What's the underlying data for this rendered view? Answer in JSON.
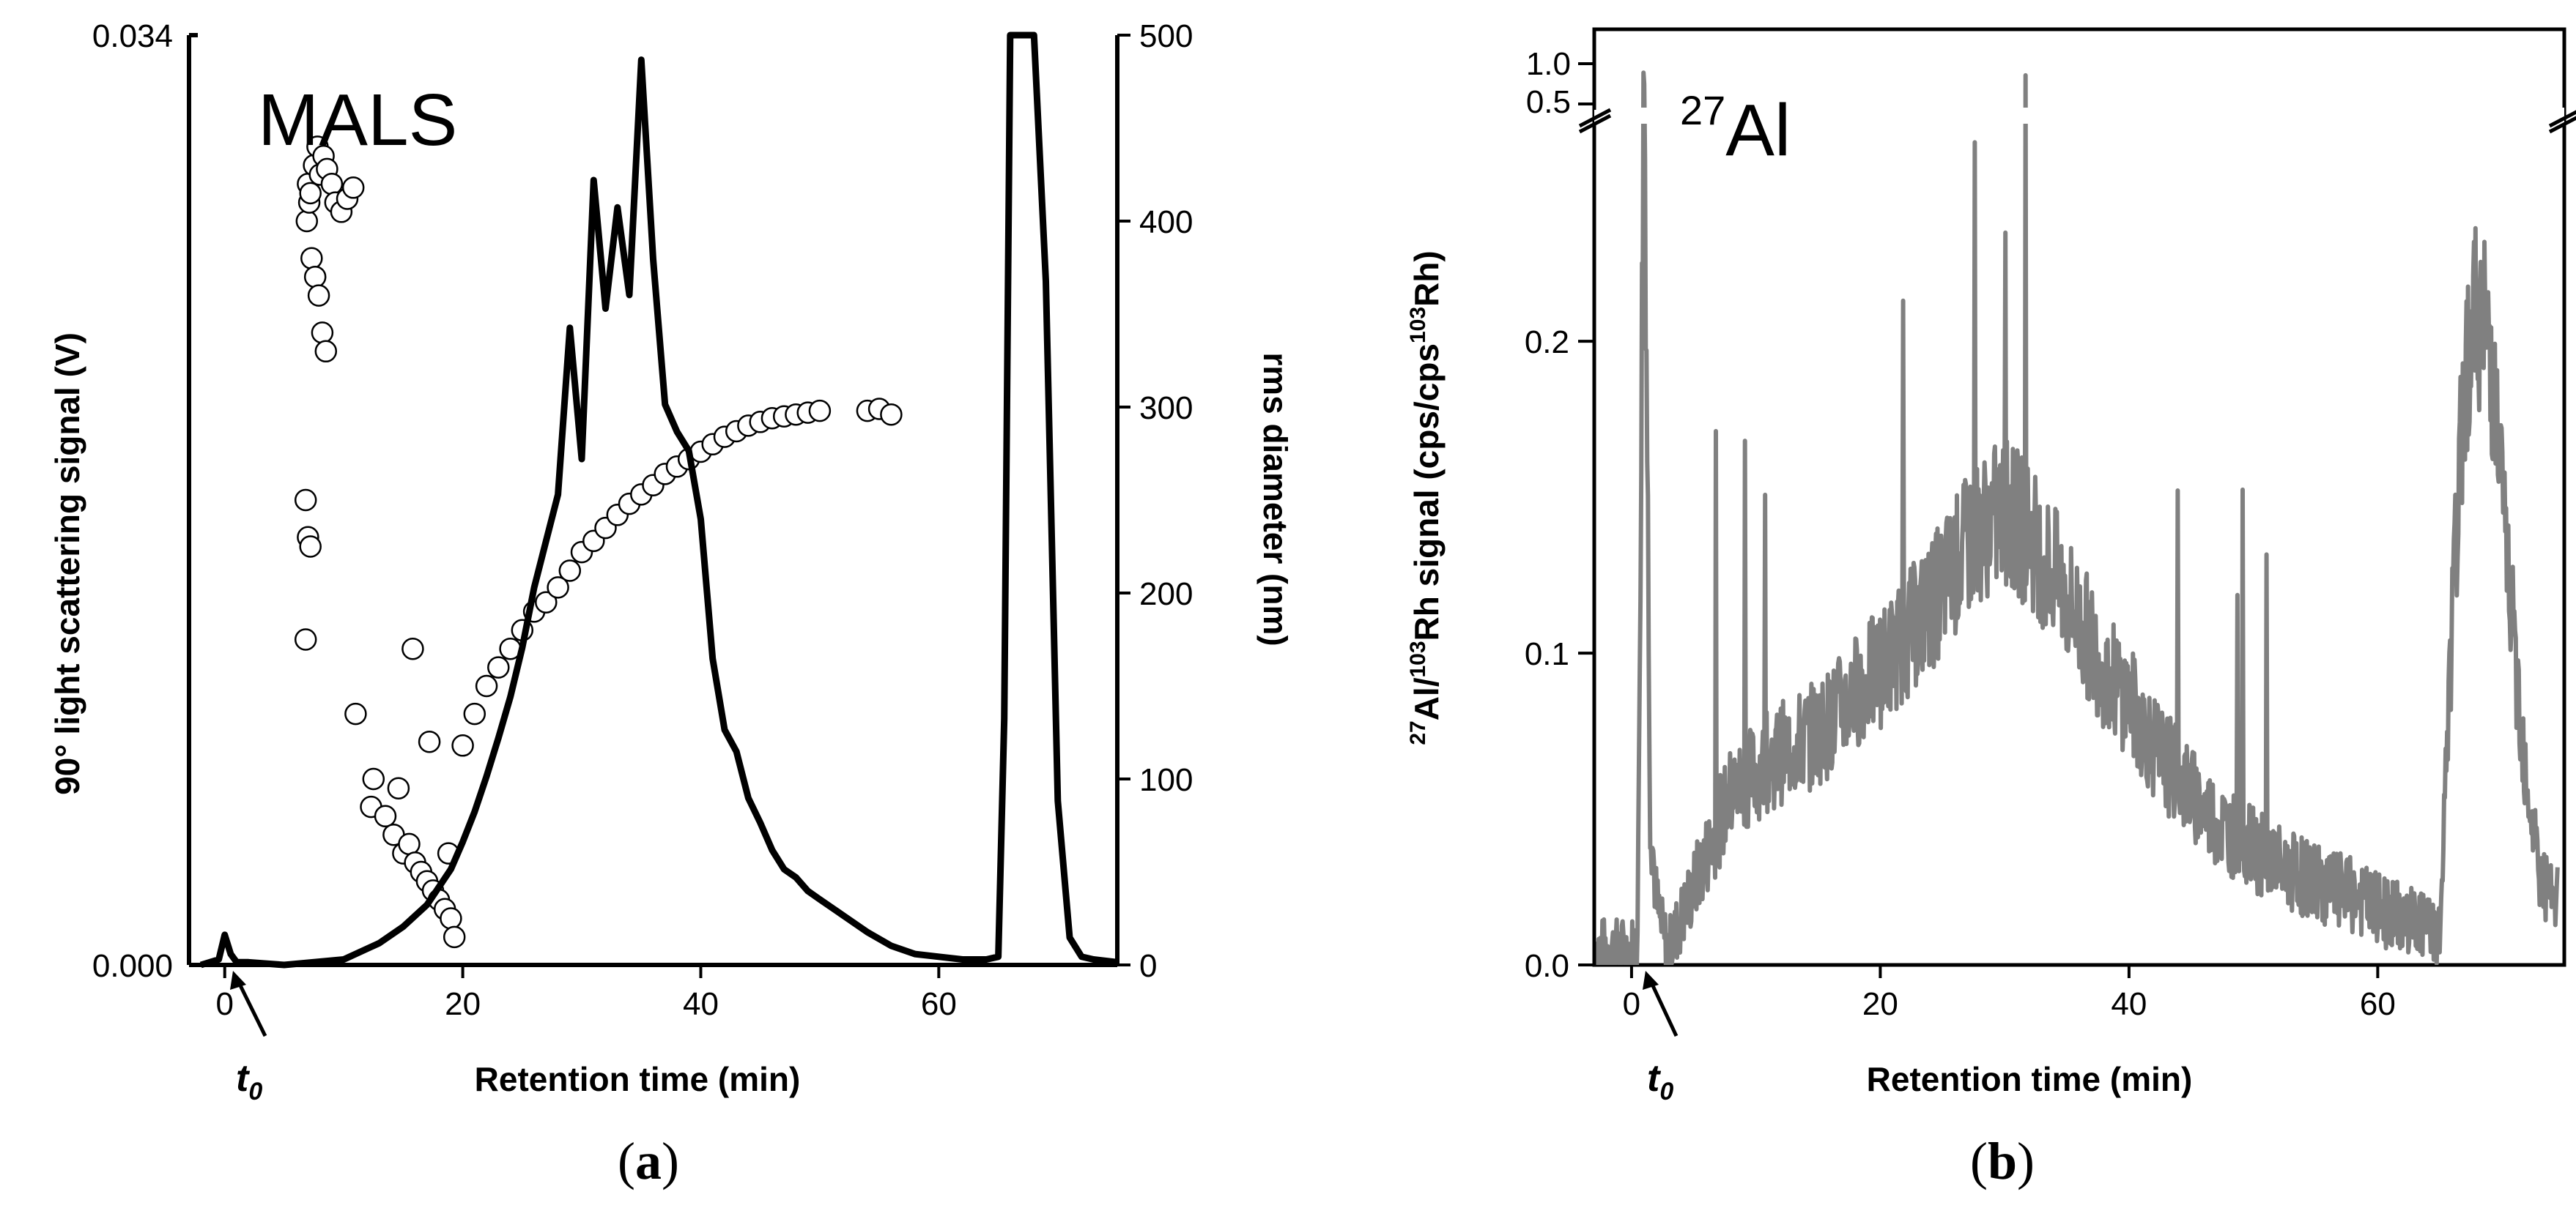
{
  "chart_data": [
    {
      "id": "a",
      "type": "line",
      "caption": {
        "open": "(",
        "letter": "a",
        "close": ")"
      },
      "annotation": "MALS",
      "t0": {
        "t": "t",
        "sub": "0"
      },
      "xlabel": "Retention time (min)",
      "xlim": [
        -3,
        75
      ],
      "xticks": [
        "0",
        "20",
        "40",
        "60"
      ],
      "ylabel_left": "90° light scattering signal (V)",
      "ylim_left": [
        0,
        0.034
      ],
      "yticks_left": [
        "0.000",
        "0.034"
      ],
      "ylabel_right": "rms diameter (nm)",
      "ylim_right": [
        0,
        500
      ],
      "yticks_right": [
        "0",
        "100",
        "200",
        "300",
        "400",
        "500"
      ],
      "series": [
        {
          "name": "90° light scattering signal",
          "axis": "left",
          "style": "line",
          "color": "#000000",
          "x": [
            -2,
            -0.5,
            0,
            0.5,
            1,
            2,
            5,
            10,
            13,
            15,
            17,
            19,
            20,
            21,
            22,
            23,
            24,
            25,
            26,
            27,
            28,
            29,
            30,
            31,
            32,
            33,
            34,
            35,
            36,
            37,
            38,
            39,
            40,
            41,
            42,
            43,
            44,
            45,
            46,
            47,
            48,
            49,
            50,
            52,
            54,
            56,
            58,
            60,
            62,
            64,
            65,
            65.5,
            66,
            67,
            68,
            69,
            70,
            71,
            72,
            73,
            75
          ],
          "y": [
            0,
            0.0002,
            0.0011,
            0.0004,
            0.0001,
            0.0001,
            0,
            0.0002,
            0.0008,
            0.0014,
            0.0022,
            0.0035,
            0.0045,
            0.0056,
            0.0069,
            0.0083,
            0.0098,
            0.0116,
            0.0138,
            0.0155,
            0.0172,
            0.0218,
            0.0195,
            0.0272,
            0.025,
            0.0262,
            0.0255,
            0.0316,
            0.0268,
            0.0205,
            0.0195,
            0.0188,
            0.0163,
            0.0112,
            0.0086,
            0.0078,
            0.0061,
            0.0052,
            0.0042,
            0.0035,
            0.0032,
            0.0027,
            0.0024,
            0.0018,
            0.0012,
            0.0007,
            0.0004,
            0.0003,
            0.0002,
            0.0002,
            0.0003,
            0.009,
            0.034,
            0.034,
            0.034,
            0.025,
            0.006,
            0.001,
            0.0003,
            0.0002,
            0.0001
          ]
        },
        {
          "name": "rms diameter",
          "axis": "right",
          "style": "scatter",
          "x": [
            6.9,
            7.0,
            7.1,
            7.2,
            7.5,
            7.8,
            8.0,
            8.3,
            8.6,
            9.0,
            9.3,
            9.8,
            10.3,
            10.8,
            7.3,
            7.6,
            7.9,
            8.2,
            8.5,
            6.8,
            7.0,
            7.2,
            6.8,
            11.0,
            12.5,
            12.3,
            13.5,
            14.2,
            15.0,
            15.5,
            16.0,
            16.5,
            17.0,
            17.5,
            18.0,
            18.5,
            19.0,
            19.3,
            18.8,
            15.8,
            14.6,
            17.2,
            20,
            21,
            22,
            23,
            24,
            25,
            26,
            27,
            28,
            29,
            30,
            31,
            32,
            33,
            34,
            35,
            36,
            37,
            38,
            39,
            40,
            41,
            42,
            43,
            44,
            45,
            46,
            47,
            48,
            49,
            50,
            54,
            55,
            56
          ],
          "y": [
            400,
            420,
            410,
            415,
            430,
            440,
            425,
            435,
            428,
            420,
            410,
            405,
            412,
            418,
            380,
            370,
            360,
            340,
            330,
            250,
            230,
            225,
            175,
            135,
            100,
            85,
            80,
            70,
            60,
            65,
            55,
            50,
            45,
            40,
            35,
            30,
            25,
            15,
            60,
            170,
            95,
            120,
            118,
            135,
            150,
            160,
            170,
            180,
            190,
            195,
            203,
            212,
            222,
            228,
            235,
            242,
            248,
            253,
            258,
            264,
            268,
            272,
            276,
            280,
            284,
            287,
            290,
            292,
            294,
            295,
            296,
            297,
            298,
            298,
            299,
            296
          ]
        }
      ]
    },
    {
      "id": "b",
      "type": "line",
      "caption": {
        "open": "(",
        "letter": "b",
        "close": ")"
      },
      "annotation": {
        "sup": "27",
        "text": "Al"
      },
      "t0": {
        "t": "t",
        "sub": "0"
      },
      "xlabel": "Retention time (min)",
      "xlim": [
        -3,
        75
      ],
      "xticks": [
        "0",
        "20",
        "40",
        "60"
      ],
      "ylabel_parts": {
        "sup1": "27",
        "a1": "Al/",
        "sup2": "103",
        "a2": "Rh signal (cps/cps",
        "sup3": "103",
        "a3": "Rh)"
      },
      "ylim": [
        0,
        0.27
      ],
      "yticks": [
        "0.0",
        "0.1",
        "0.2"
      ],
      "broken_axis_ticks": [
        "0.5",
        "1.0"
      ],
      "series": [
        {
          "name": "27Al/103Rh signal",
          "color": "#808080",
          "style": "noisy-line",
          "x": [
            -3,
            0,
            0.5,
            1,
            1.5,
            2,
            2.5,
            3,
            4,
            5,
            6,
            7,
            8,
            10,
            12,
            14,
            16,
            18,
            20,
            22,
            24,
            26,
            28,
            30,
            32,
            34,
            36,
            38,
            40,
            42,
            44,
            46,
            48,
            50,
            52,
            54,
            56,
            58,
            60,
            62,
            64,
            65,
            66,
            67,
            68,
            69,
            70,
            71,
            72,
            73,
            74
          ],
          "y": [
            0.005,
            0.005,
            0.01,
            0.3,
            0.05,
            0.02,
            0.01,
            0.005,
            0.015,
            0.025,
            0.035,
            0.045,
            0.055,
            0.062,
            0.068,
            0.072,
            0.078,
            0.088,
            0.095,
            0.105,
            0.115,
            0.128,
            0.14,
            0.145,
            0.138,
            0.125,
            0.11,
            0.095,
            0.085,
            0.07,
            0.06,
            0.05,
            0.043,
            0.037,
            0.032,
            0.028,
            0.025,
            0.022,
            0.018,
            0.015,
            0.012,
            0.01,
            0.11,
            0.19,
            0.21,
            0.2,
            0.15,
            0.1,
            0.06,
            0.03,
            0.02
          ],
          "noise_amp": 0.025
        }
      ]
    }
  ]
}
